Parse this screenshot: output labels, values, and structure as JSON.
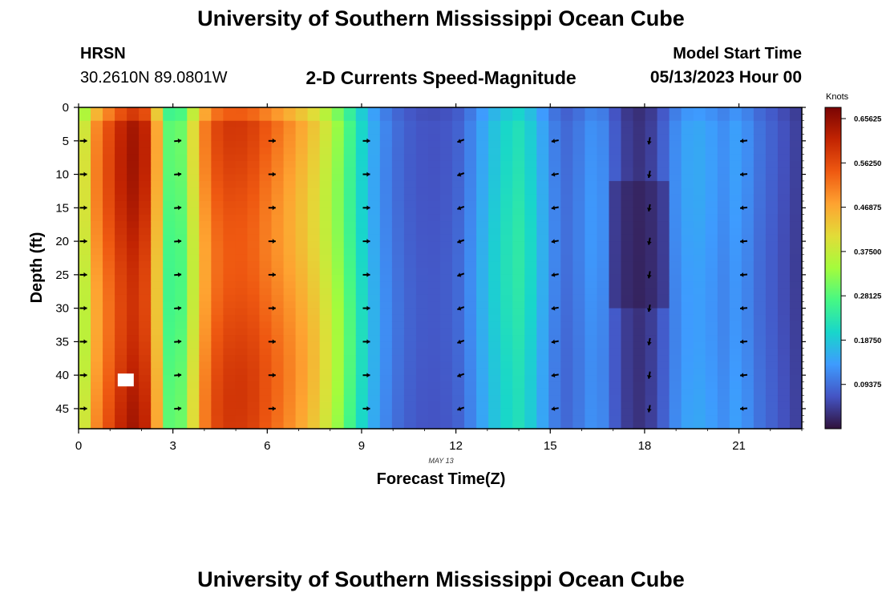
{
  "header": {
    "title": "University of Southern Mississippi Ocean Cube",
    "station": "HRSN",
    "coords": "30.2610N  89.0801W",
    "subtitle": "2-D Currents Speed-Magnitude",
    "model_start_label": "Model Start Time",
    "model_start_value": "05/13/2023 Hour 00"
  },
  "footer": {
    "title": "University of Southern Mississippi Ocean Cube"
  },
  "colors": {
    "frame": "#000000",
    "background": "#ffffff",
    "missing_cell": "#ffffff"
  },
  "chart_data": {
    "type": "heatmap",
    "title": "2-D Currents Speed-Magnitude",
    "xlabel": "Forecast Time(Z)",
    "ylabel": "Depth (ft)",
    "date_label": "MAY 13",
    "xlim": [
      0,
      23
    ],
    "ylim": [
      48,
      0
    ],
    "x_ticks": [
      0,
      3,
      6,
      9,
      12,
      15,
      18,
      21
    ],
    "y_ticks": [
      0,
      5,
      10,
      15,
      20,
      25,
      30,
      35,
      40,
      45
    ],
    "colorbar": {
      "unit": "Knots",
      "min": 0.0,
      "max": 0.68,
      "tick_labels": [
        "0.65625",
        "0.56250",
        "0.46875",
        "0.37500",
        "0.28125",
        "0.18750",
        "0.09375"
      ],
      "tick_values": [
        0.65625,
        0.5625,
        0.46875,
        0.375,
        0.28125,
        0.1875,
        0.09375
      ]
    },
    "speed_profile_by_hour": [
      {
        "hour": 0.0,
        "speed": 0.32
      },
      {
        "hour": 0.5,
        "speed": 0.48
      },
      {
        "hour": 1.0,
        "speed": 0.55
      },
      {
        "hour": 1.5,
        "speed": 0.61
      },
      {
        "hour": 2.0,
        "speed": 0.63
      },
      {
        "hour": 2.5,
        "speed": 0.45
      },
      {
        "hour": 3.0,
        "speed": 0.22
      },
      {
        "hour": 3.5,
        "speed": 0.35
      },
      {
        "hour": 4.0,
        "speed": 0.49
      },
      {
        "hour": 4.5,
        "speed": 0.56
      },
      {
        "hour": 5.0,
        "speed": 0.57
      },
      {
        "hour": 5.5,
        "speed": 0.56
      },
      {
        "hour": 6.0,
        "speed": 0.53
      },
      {
        "hour": 6.5,
        "speed": 0.5
      },
      {
        "hour": 7.0,
        "speed": 0.47
      },
      {
        "hour": 7.5,
        "speed": 0.43
      },
      {
        "hour": 8.0,
        "speed": 0.37
      },
      {
        "hour": 8.5,
        "speed": 0.29
      },
      {
        "hour": 9.0,
        "speed": 0.21
      },
      {
        "hour": 9.5,
        "speed": 0.14
      },
      {
        "hour": 10.0,
        "speed": 0.1
      },
      {
        "hour": 10.5,
        "speed": 0.08
      },
      {
        "hour": 11.0,
        "speed": 0.07
      },
      {
        "hour": 11.5,
        "speed": 0.07
      },
      {
        "hour": 12.0,
        "speed": 0.08
      },
      {
        "hour": 12.5,
        "speed": 0.12
      },
      {
        "hour": 13.0,
        "speed": 0.17
      },
      {
        "hour": 13.5,
        "speed": 0.21
      },
      {
        "hour": 14.0,
        "speed": 0.23
      },
      {
        "hour": 14.5,
        "speed": 0.19
      },
      {
        "hour": 15.0,
        "speed": 0.12
      },
      {
        "hour": 15.5,
        "speed": 0.09
      },
      {
        "hour": 16.0,
        "speed": 0.11
      },
      {
        "hour": 16.5,
        "speed": 0.14
      },
      {
        "hour": 17.0,
        "speed": 0.08
      },
      {
        "hour": 17.5,
        "speed": 0.04
      },
      {
        "hour": 18.0,
        "speed": 0.03
      },
      {
        "hour": 18.5,
        "speed": 0.07
      },
      {
        "hour": 19.0,
        "speed": 0.12
      },
      {
        "hour": 19.5,
        "speed": 0.15
      },
      {
        "hour": 20.0,
        "speed": 0.14
      },
      {
        "hour": 20.5,
        "speed": 0.12
      },
      {
        "hour": 21.0,
        "speed": 0.14
      },
      {
        "hour": 21.5,
        "speed": 0.1
      },
      {
        "hour": 22.0,
        "speed": 0.08
      },
      {
        "hour": 22.5,
        "speed": 0.06
      },
      {
        "hour": 23.0,
        "speed": 0.04
      }
    ],
    "vector_hours": [
      0,
      3,
      6,
      9,
      12,
      15,
      18,
      21
    ],
    "vector_depths": [
      5,
      10,
      15,
      20,
      25,
      30,
      35,
      40,
      45
    ],
    "vector_directions_deg": [
      {
        "hour": 0,
        "direction": 0
      },
      {
        "hour": 3,
        "direction": 5
      },
      {
        "hour": 6,
        "direction": 0
      },
      {
        "hour": 9,
        "direction": 0
      },
      {
        "hour": 12,
        "direction": 200
      },
      {
        "hour": 15,
        "direction": 190
      },
      {
        "hour": 18,
        "direction": 260
      },
      {
        "hour": 21,
        "direction": 185
      }
    ],
    "missing_data": {
      "hour": 1.5,
      "depth": 40
    }
  }
}
